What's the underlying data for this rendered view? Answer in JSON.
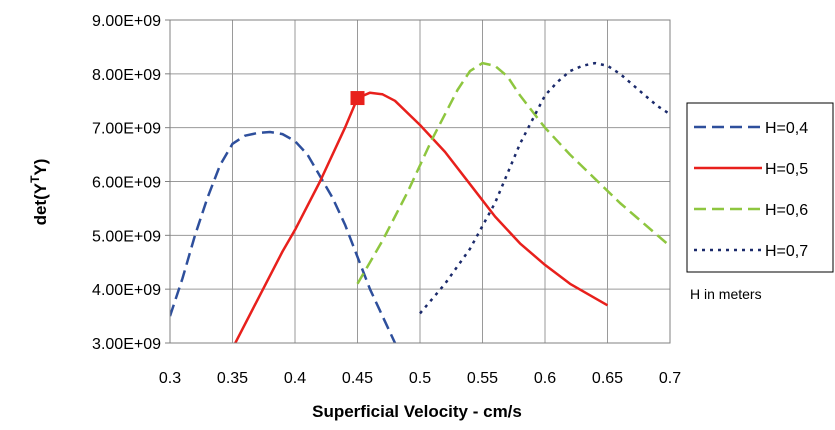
{
  "chart_data": {
    "type": "line",
    "title": "",
    "xlabel": "Superficial Velocity - cm/s",
    "ylabel_main": "det(Y",
    "ylabel_sup": "T",
    "ylabel_tail": "Y)",
    "xlim": [
      0.3,
      0.7
    ],
    "ylim": [
      3000000000.0,
      9000000000.0
    ],
    "x_ticks": [
      0.3,
      0.35,
      0.4,
      0.45,
      0.5,
      0.55,
      0.6,
      0.65,
      0.7
    ],
    "x_tick_labels": [
      "0.3",
      "0.35",
      "0.4",
      "0.45",
      "0.5",
      "0.55",
      "0.6",
      "0.65",
      "0.7"
    ],
    "y_ticks": [
      3000000000.0,
      4000000000.0,
      5000000000.0,
      6000000000.0,
      7000000000.0,
      8000000000.0,
      9000000000.0
    ],
    "y_tick_labels": [
      "3.00E+09",
      "4.00E+09",
      "5.00E+09",
      "6.00E+09",
      "7.00E+09",
      "8.00E+09",
      "9.00E+09"
    ],
    "grid": true,
    "legend_position": "right",
    "legend_note": "H in meters",
    "series": [
      {
        "name": "H=0,4",
        "color": "#2e4f9c",
        "dash": "long-dash",
        "x": [
          0.3,
          0.31,
          0.32,
          0.33,
          0.34,
          0.35,
          0.36,
          0.37,
          0.38,
          0.39,
          0.4,
          0.41,
          0.42,
          0.43,
          0.44,
          0.45,
          0.46,
          0.47,
          0.48
        ],
        "y": [
          3500000000.0,
          4200000000.0,
          5000000000.0,
          5700000000.0,
          6300000000.0,
          6700000000.0,
          6850000000.0,
          6900000000.0,
          6920000000.0,
          6880000000.0,
          6750000000.0,
          6500000000.0,
          6100000000.0,
          5700000000.0,
          5200000000.0,
          4600000000.0,
          4000000000.0,
          3500000000.0,
          3000000000.0
        ]
      },
      {
        "name": "H=0,5",
        "color": "#e8201c",
        "dash": "solid",
        "x": [
          0.35,
          0.37,
          0.39,
          0.4,
          0.42,
          0.44,
          0.45,
          0.46,
          0.47,
          0.48,
          0.5,
          0.52,
          0.54,
          0.56,
          0.58,
          0.6,
          0.62,
          0.65
        ],
        "y": [
          2900000000.0,
          3800000000.0,
          4700000000.0,
          5100000000.0,
          6000000000.0,
          7000000000.0,
          7550000000.0,
          7650000000.0,
          7620000000.0,
          7500000000.0,
          7050000000.0,
          6550000000.0,
          5950000000.0,
          5350000000.0,
          4850000000.0,
          4450000000.0,
          4100000000.0,
          3700000000.0
        ]
      },
      {
        "name": "H=0,6",
        "color": "#8ec63f",
        "dash": "long-dash",
        "x": [
          0.45,
          0.47,
          0.49,
          0.51,
          0.53,
          0.54,
          0.55,
          0.56,
          0.57,
          0.58,
          0.6,
          0.62,
          0.64,
          0.66,
          0.68,
          0.7
        ],
        "y": [
          4100000000.0,
          4900000000.0,
          5800000000.0,
          6800000000.0,
          7700000000.0,
          8050000000.0,
          8200000000.0,
          8150000000.0,
          7950000000.0,
          7600000000.0,
          7000000000.0,
          6500000000.0,
          6050000000.0,
          5600000000.0,
          5200000000.0,
          4800000000.0
        ]
      },
      {
        "name": "H=0,7",
        "color": "#1b2a6b",
        "dash": "dot",
        "x": [
          0.5,
          0.52,
          0.54,
          0.56,
          0.58,
          0.6,
          0.61,
          0.62,
          0.63,
          0.64,
          0.65,
          0.66,
          0.67,
          0.68,
          0.69,
          0.7
        ],
        "y": [
          3550000000.0,
          4100000000.0,
          4750000000.0,
          5600000000.0,
          6700000000.0,
          7600000000.0,
          7850000000.0,
          8050000000.0,
          8150000000.0,
          8200000000.0,
          8150000000.0,
          8000000000.0,
          7800000000.0,
          7600000000.0,
          7400000000.0,
          7250000000.0
        ]
      }
    ],
    "highlight_point": {
      "x": 0.45,
      "y": 7550000000.0,
      "color": "#e8201c",
      "marker": "square"
    }
  }
}
